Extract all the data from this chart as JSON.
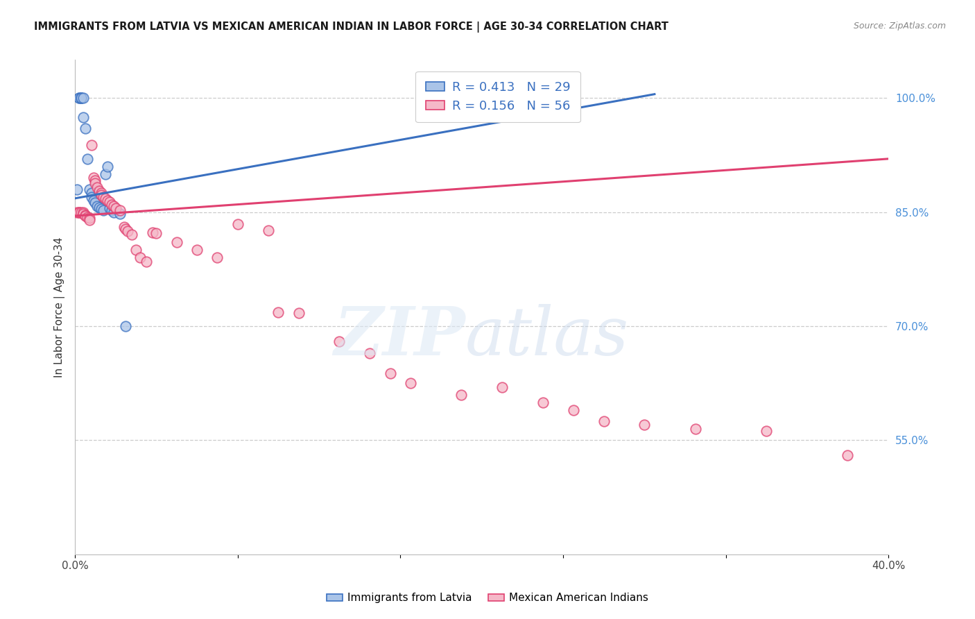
{
  "title": "IMMIGRANTS FROM LATVIA VS MEXICAN AMERICAN INDIAN IN LABOR FORCE | AGE 30-34 CORRELATION CHART",
  "source": "Source: ZipAtlas.com",
  "ylabel": "In Labor Force | Age 30-34",
  "xlim": [
    0.0,
    0.4
  ],
  "ylim": [
    0.4,
    1.05
  ],
  "yticks": [
    0.55,
    0.7,
    0.85,
    1.0
  ],
  "ytick_labels": [
    "55.0%",
    "70.0%",
    "85.0%",
    "100.0%"
  ],
  "blue_R": 0.413,
  "blue_N": 29,
  "pink_R": 0.156,
  "pink_N": 56,
  "blue_color": "#aac4e8",
  "pink_color": "#f5b8c8",
  "blue_line_color": "#3a70c0",
  "pink_line_color": "#e04070",
  "legend_blue_label": "Immigrants from Latvia",
  "legend_pink_label": "Mexican American Indians",
  "blue_x": [
    0.001,
    0.002,
    0.002,
    0.003,
    0.003,
    0.003,
    0.004,
    0.004,
    0.005,
    0.006,
    0.007,
    0.008,
    0.008,
    0.009,
    0.01,
    0.011,
    0.012,
    0.013,
    0.014,
    0.015,
    0.016,
    0.017,
    0.018,
    0.019,
    0.022,
    0.025,
    0.2,
    0.215,
    0.23
  ],
  "blue_y": [
    0.88,
    1.0,
    1.0,
    1.0,
    1.0,
    1.0,
    1.0,
    0.975,
    0.96,
    0.92,
    0.88,
    0.875,
    0.87,
    0.865,
    0.862,
    0.858,
    0.856,
    0.854,
    0.852,
    0.9,
    0.91,
    0.855,
    0.852,
    0.85,
    0.848,
    0.7,
    1.0,
    1.0,
    1.0
  ],
  "pink_x": [
    0.001,
    0.002,
    0.002,
    0.003,
    0.004,
    0.004,
    0.005,
    0.005,
    0.006,
    0.007,
    0.007,
    0.008,
    0.009,
    0.01,
    0.01,
    0.011,
    0.012,
    0.013,
    0.013,
    0.014,
    0.015,
    0.016,
    0.017,
    0.018,
    0.019,
    0.02,
    0.022,
    0.024,
    0.025,
    0.026,
    0.028,
    0.03,
    0.032,
    0.035,
    0.038,
    0.04,
    0.05,
    0.06,
    0.07,
    0.08,
    0.095,
    0.1,
    0.11,
    0.13,
    0.145,
    0.155,
    0.165,
    0.19,
    0.21,
    0.23,
    0.245,
    0.26,
    0.28,
    0.305,
    0.34,
    0.38
  ],
  "pink_y": [
    0.85,
    0.85,
    0.85,
    0.85,
    0.85,
    0.848,
    0.846,
    0.845,
    0.843,
    0.842,
    0.84,
    0.938,
    0.895,
    0.892,
    0.888,
    0.882,
    0.878,
    0.875,
    0.872,
    0.87,
    0.868,
    0.865,
    0.863,
    0.86,
    0.858,
    0.855,
    0.852,
    0.83,
    0.828,
    0.825,
    0.82,
    0.8,
    0.79,
    0.785,
    0.823,
    0.822,
    0.81,
    0.8,
    0.79,
    0.834,
    0.826,
    0.718,
    0.717,
    0.68,
    0.664,
    0.638,
    0.625,
    0.61,
    0.62,
    0.6,
    0.59,
    0.575,
    0.57,
    0.565,
    0.562,
    0.53
  ]
}
